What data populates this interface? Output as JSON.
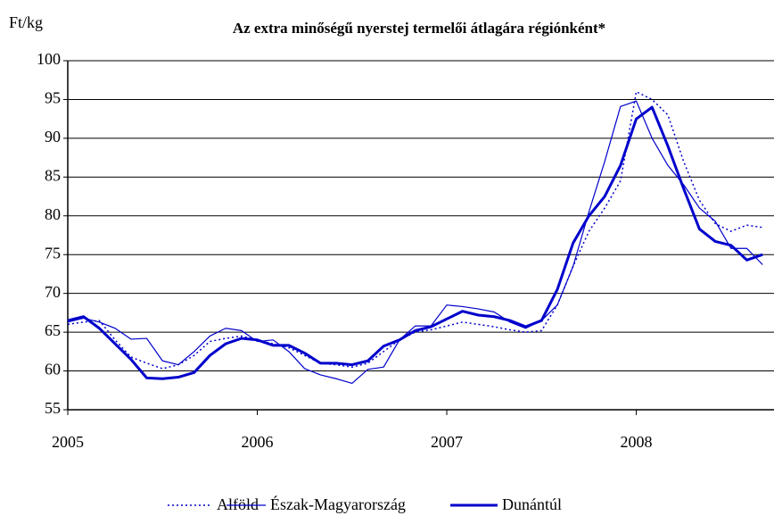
{
  "chart_data": {
    "type": "line",
    "title": "Az extra minőségű nyerstej termelői átlagára régiónként*",
    "y_label": "Ft/kg",
    "categories": [
      "2005",
      null,
      null,
      null,
      null,
      null,
      null,
      null,
      null,
      null,
      null,
      null,
      "2006",
      null,
      null,
      null,
      null,
      null,
      null,
      null,
      null,
      null,
      null,
      null,
      "2007",
      null,
      null,
      null,
      null,
      null,
      null,
      null,
      null,
      null,
      null,
      null,
      "2008",
      null,
      null,
      null,
      null,
      null,
      null,
      null,
      null
    ],
    "series": [
      {
        "name": "Alföld",
        "color": "#0000cc",
        "values": [
          66,
          66.3,
          66.5,
          64,
          61.8,
          61,
          60.3,
          60.8,
          62,
          63.8,
          64.2,
          64.5,
          64,
          63.5,
          63,
          62,
          61,
          60.8,
          60.5,
          61,
          62.5,
          64,
          65,
          65.3,
          65.8,
          66.3,
          66,
          65.7,
          65.3,
          65,
          65.2,
          68.5,
          73.5,
          78,
          81,
          84.5,
          96,
          95,
          93,
          87,
          82,
          79,
          78,
          78.8,
          78.5
        ]
      },
      {
        "name": "Észak-Magyarország",
        "color": "#0000cc",
        "values": [
          66.3,
          66.8,
          66.3,
          65.5,
          64.1,
          64.2,
          61.3,
          60.8,
          62.5,
          64.5,
          65.5,
          65.2,
          63.8,
          64,
          62.5,
          60.3,
          59.5,
          59,
          58.4,
          60.2,
          60.5,
          64,
          65.8,
          65.8,
          68.5,
          68.3,
          68,
          67.6,
          66.3,
          65.5,
          66.5,
          68.5,
          73.5,
          80.5,
          87,
          94.1,
          94.8,
          90,
          86.5,
          84,
          81,
          79.3,
          75.8,
          75.8,
          73.7
        ]
      },
      {
        "name": "Dunántúl",
        "color": "#0000cc",
        "values": [
          66.5,
          67,
          65.5,
          63.5,
          61.5,
          59.1,
          59,
          59.2,
          59.8,
          62,
          63.5,
          64.2,
          64,
          63.3,
          63.3,
          62.3,
          61,
          61,
          60.8,
          61.3,
          63.2,
          64,
          65.2,
          65.7,
          66.7,
          67.7,
          67.2,
          67,
          66.5,
          65.7,
          66.5,
          70.5,
          76.5,
          80,
          82.5,
          86.5,
          92.5,
          94,
          89,
          83.5,
          78.3,
          76.7,
          76.2,
          74.3,
          75
        ]
      }
    ],
    "ylim": [
      55,
      100
    ],
    "yticks": [
      55,
      60,
      65,
      70,
      75,
      80,
      85,
      90,
      95,
      100
    ],
    "grid": true
  }
}
